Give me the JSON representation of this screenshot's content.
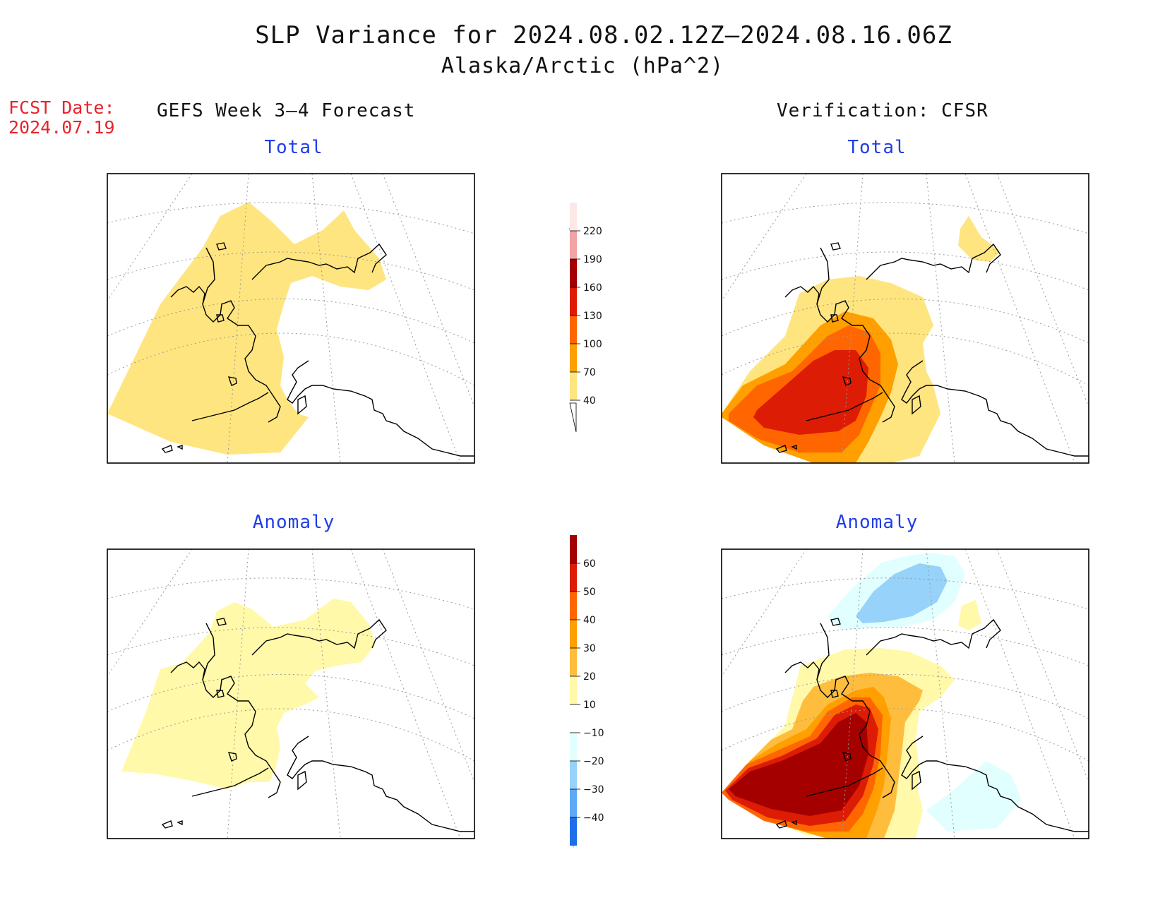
{
  "title": {
    "line1": "SLP Variance for 2024.08.02.12Z–2024.08.16.06Z",
    "line2": "Alaska/Arctic (hPa^2)"
  },
  "forecast_date": {
    "label": "FCST Date:",
    "value": "2024.07.19"
  },
  "columns": {
    "left": "GEFS Week 3–4 Forecast",
    "right": "Verification: CFSR"
  },
  "panels": [
    {
      "title": "Total"
    },
    {
      "title": "Total"
    },
    {
      "title": "Anomaly"
    },
    {
      "title": "Anomaly"
    }
  ],
  "colorbars": {
    "total": {
      "ticks": [
        "220",
        "190",
        "160",
        "130",
        "100",
        "70",
        "40"
      ],
      "colors": [
        "#fde7e7",
        "#f2a3a3",
        "#a50000",
        "#dd1c05",
        "#ff6600",
        "#ff9f00",
        "#ffe57f"
      ]
    },
    "anomaly": {
      "ticks": [
        "60",
        "50",
        "40",
        "30",
        "20",
        "10",
        "−10",
        "−20",
        "−30",
        "−40"
      ],
      "colors": [
        "#a50000",
        "#dd1c05",
        "#ff6600",
        "#ff9f00",
        "#ffbd3e",
        "#fff9a9",
        "#ffffff",
        "#e0fffe",
        "#96d2fa",
        "#5fa8f5",
        "#1e6eeb"
      ]
    }
  },
  "colors": {
    "forecast_label": "#e8232b",
    "panel_title": "#1f3de8"
  }
}
